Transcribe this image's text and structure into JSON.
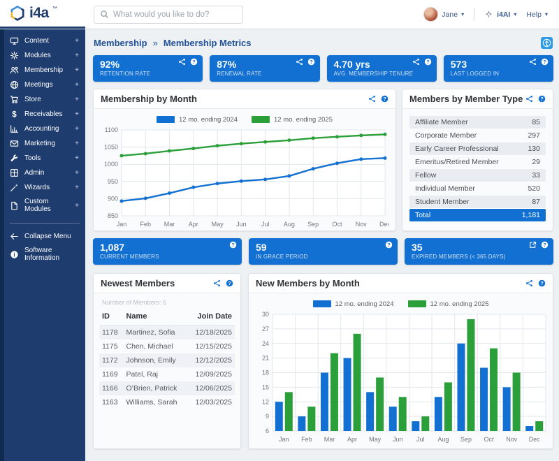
{
  "header": {
    "logo_text": "i4a",
    "logo_tm": "™",
    "search_placeholder": "What would you like to do?",
    "user_name": "Jane",
    "ai_label": "i4AI",
    "help_label": "Help"
  },
  "sidebar": {
    "items": [
      {
        "label": "Content",
        "icon": "monitor",
        "expander": "+"
      },
      {
        "label": "Modules",
        "icon": "gear",
        "expander": "+"
      },
      {
        "label": "Membership",
        "icon": "users",
        "expander": "+"
      },
      {
        "label": "Meetings",
        "icon": "globe",
        "expander": "+"
      },
      {
        "label": "Store",
        "icon": "cart",
        "expander": "+"
      },
      {
        "label": "Receivables",
        "icon": "dollar",
        "expander": "+"
      },
      {
        "label": "Accounting",
        "icon": "bar-chart",
        "expander": "+"
      },
      {
        "label": "Marketing",
        "icon": "envelope",
        "expander": "+"
      },
      {
        "label": "Tools",
        "icon": "wrench",
        "expander": "+"
      },
      {
        "label": "Admin",
        "icon": "grid",
        "expander": "+"
      },
      {
        "label": "Wizards",
        "icon": "wand",
        "expander": "+"
      },
      {
        "label": "Custom Modules",
        "icon": "file",
        "expander": "+"
      }
    ],
    "footer_items": [
      {
        "label": "Collapse Menu",
        "icon": "arrow-left"
      },
      {
        "label": "Software Information",
        "icon": "info-circle"
      }
    ]
  },
  "breadcrumb": {
    "parent": "Membership",
    "separator": "»",
    "current": "Membership Metrics"
  },
  "kpis_row1": [
    {
      "value": "92%",
      "label": "RETENTION RATE",
      "icons": [
        "share-nodes",
        "question-circle"
      ]
    },
    {
      "value": "87%",
      "label": "RENEWAL RATE",
      "icons": [
        "share-nodes",
        "question-circle"
      ]
    },
    {
      "value": "4.70 yrs",
      "label": "AVG. MEMBERSHIP TENURE",
      "icons": [
        "share-nodes",
        "question-circle"
      ]
    },
    {
      "value": "573",
      "label": "LAST LOGGED IN",
      "icons": [
        "share-nodes",
        "question-circle"
      ]
    }
  ],
  "kpis_row2": [
    {
      "value": "1,087",
      "label": "CURRENT MEMBERS",
      "icons": [
        "question-circle"
      ]
    },
    {
      "value": "59",
      "label": "IN GRACE PERIOD",
      "icons": [
        "question-circle"
      ]
    },
    {
      "value": "35",
      "label": "EXPIRED MEMBERS (< 365 DAYS)",
      "icons": [
        "external-link",
        "question-circle"
      ]
    }
  ],
  "member_type_card": {
    "title": "Members by Member Type",
    "rows": [
      {
        "label": "Affiliate Member",
        "value": "85"
      },
      {
        "label": "Corporate Member",
        "value": "297"
      },
      {
        "label": "Early Career Professional",
        "value": "130"
      },
      {
        "label": "Emeritus/Retired Member",
        "value": "29"
      },
      {
        "label": "Fellow",
        "value": "33"
      },
      {
        "label": "Individual Member",
        "value": "520"
      },
      {
        "label": "Student Member",
        "value": "87"
      }
    ],
    "total": {
      "label": "Total",
      "value": "1,181"
    }
  },
  "newest_members_card": {
    "title": "Newest Members",
    "count_label": "Number of Members: 6",
    "columns": [
      "ID",
      "Name",
      "Join Date"
    ],
    "rows": [
      [
        "1178",
        "Martinez, Sofia",
        "12/18/2025"
      ],
      [
        "1175",
        "Chen, Michael",
        "12/15/2025"
      ],
      [
        "1172",
        "Johnson, Emily",
        "12/12/2025"
      ],
      [
        "1169",
        "Patel, Raj",
        "12/09/2025"
      ],
      [
        "1166",
        "O’Brien, Patrick",
        "12/06/2025"
      ],
      [
        "1163",
        "Williams, Sarah",
        "12/03/2025"
      ]
    ]
  },
  "chart_data": [
    {
      "type": "line",
      "title": "Membership by Month",
      "categories": [
        "Jan",
        "Feb",
        "Mar",
        "Apr",
        "May",
        "Jun",
        "Jul",
        "Aug",
        "Sep",
        "Oct",
        "Nov",
        "Dec"
      ],
      "series": [
        {
          "name": "12 mo. ending 2024",
          "color": "#1170d2",
          "values": [
            893,
            901,
            916,
            933,
            944,
            951,
            956,
            966,
            987,
            1003,
            1015,
            1018
          ]
        },
        {
          "name": "12 mo. ending 2025",
          "color": "#2ba03a",
          "values": [
            1025,
            1031,
            1039,
            1046,
            1054,
            1060,
            1065,
            1070,
            1076,
            1080,
            1084,
            1087
          ]
        }
      ],
      "ylim": [
        850,
        1100
      ],
      "ytick_step": 50,
      "grid": true,
      "legend_position": "top"
    },
    {
      "type": "bar",
      "title": "New Members by Month",
      "categories": [
        "Jan",
        "Feb",
        "Mar",
        "Apr",
        "May",
        "Jun",
        "Jul",
        "Aug",
        "Sep",
        "Oct",
        "Nov",
        "Dec"
      ],
      "series": [
        {
          "name": "12 mo. ending 2024",
          "color": "#1170d2",
          "values": [
            12,
            9,
            18,
            21,
            14,
            11,
            8,
            13,
            24,
            19,
            15,
            7
          ]
        },
        {
          "name": "12 mo. ending 2025",
          "color": "#2ba03a",
          "values": [
            14,
            11,
            22,
            26,
            17,
            13,
            9,
            16,
            29,
            23,
            18,
            8
          ]
        }
      ],
      "ylim": [
        6,
        30
      ],
      "ytick_step": 3,
      "grid": true,
      "legend_position": "top"
    }
  ],
  "colors": {
    "kpi_blue": "#1170d2",
    "series_blue": "#1170d2",
    "series_green": "#2ba03a",
    "sidebar_navy": "#1e3c6e",
    "sidebar_edge": "#102a52",
    "link_navy": "#215097",
    "grid_line": "#e3e7ec",
    "axis_text": "#71767d"
  }
}
